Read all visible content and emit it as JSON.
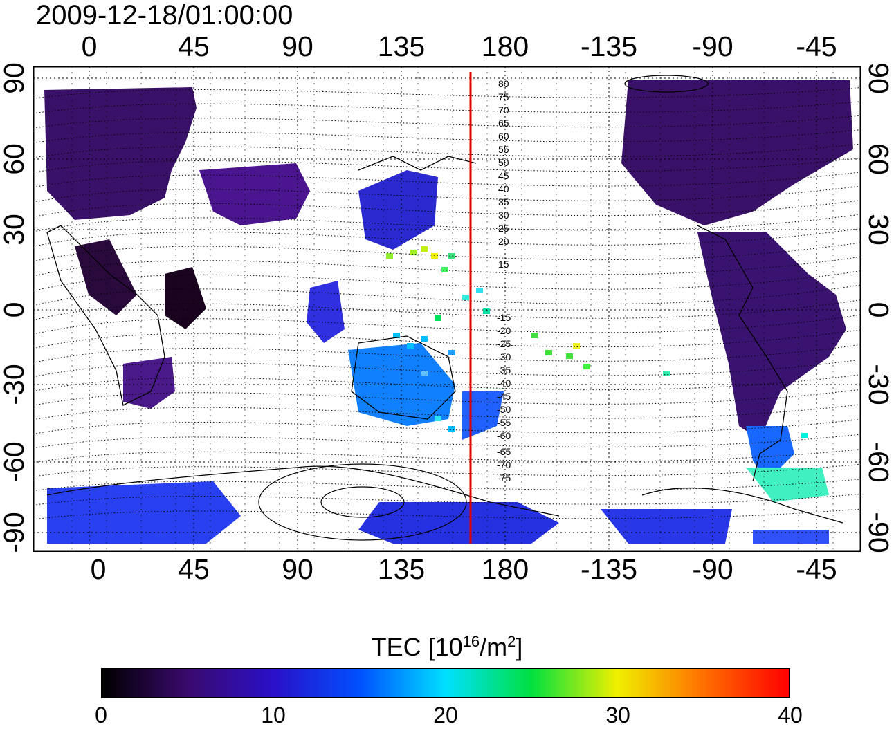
{
  "timestamp": "2009-12-18/01:00:00",
  "map": {
    "type": "global TEC map",
    "top_ticks": [
      "0",
      "45",
      "90",
      "135",
      "180",
      "-135",
      "-90",
      "-45"
    ],
    "bottom_ticks": [
      "0",
      "45",
      "90",
      "135",
      "180",
      "-135",
      "-90",
      "-45"
    ],
    "left_ticks": [
      "90",
      "60",
      "30",
      "0",
      "-30",
      "-60",
      "-90"
    ],
    "right_ticks": [
      "90",
      "60",
      "30",
      "0",
      "-30",
      "-60",
      "-90"
    ],
    "contour_labels_north": [
      "80",
      "75",
      "70",
      "65",
      "60",
      "55",
      "50",
      "45",
      "40",
      "35",
      "30",
      "25",
      "20",
      "15"
    ],
    "contour_labels_south": [
      "-15",
      "-20",
      "-25",
      "-30",
      "-35",
      "-40",
      "-45",
      "-50",
      "-55",
      "-60",
      "-65",
      "-70",
      "-75"
    ],
    "meridian_line_color": "#e00000",
    "meridian_longitude": 165,
    "grid": "dotted"
  },
  "colorbar": {
    "title_main": "TEC  [10",
    "title_sup": "16",
    "title_unit": "/m",
    "title_sup2": "2",
    "title_end": "]",
    "ticks": [
      "0",
      "10",
      "20",
      "30",
      "40"
    ],
    "range": [
      0,
      40
    ],
    "colors": [
      "#000000",
      "#3a0a6e",
      "#2a10c8",
      "#0050ff",
      "#00e0ff",
      "#00e040",
      "#f0f000",
      "#ff7000",
      "#ff0000"
    ]
  }
}
